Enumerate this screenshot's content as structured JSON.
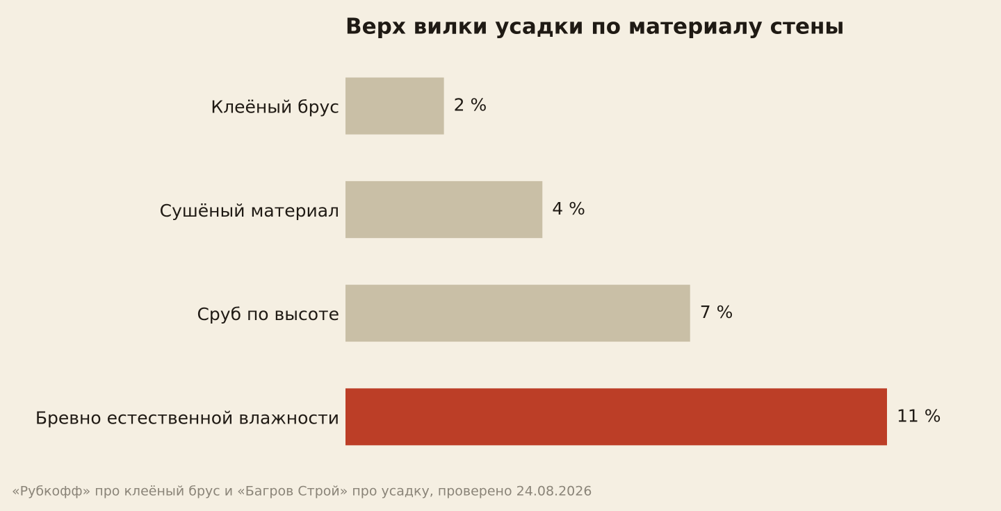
{
  "chart_data": {
    "type": "barh",
    "title": "Верх вилки усадки по материалу стены",
    "categories": [
      "Клеёный брус",
      "Сушёный материал",
      "Сруб по высоте",
      "Бревно естественной влажности"
    ],
    "values": [
      2,
      4,
      7,
      11
    ],
    "value_labels": [
      "2 %",
      "4 %",
      "7 %",
      "11 %"
    ],
    "colors": [
      "#c9bfa6",
      "#c9bfa6",
      "#c9bfa6",
      "#bc3e27"
    ],
    "source": "«Рубкофф» про клеёный брус и «Багров Строй» про усадку, проверено 24.08.2026"
  }
}
